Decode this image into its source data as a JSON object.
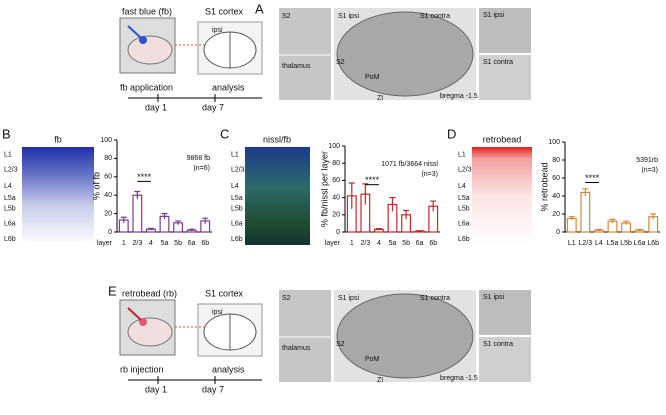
{
  "panel_a": {
    "letter": "A",
    "tracer": "fast blue (fb)",
    "target": "S1 cortex",
    "side": "ipsi",
    "step1": "fb application",
    "step2": "analysis",
    "day1": "day 1",
    "day2": "day 7",
    "image_labels": [
      "S2",
      "S1 ipsi",
      "S1 contra",
      "S2",
      "PoM",
      "thalamus",
      "ZI",
      "bregma -1.5",
      "S1 ipsi",
      "S1 contra"
    ]
  },
  "panel_e": {
    "letter": "E",
    "tracer": "retrobead (rb)",
    "target": "S1 cortex",
    "side": "ipsi",
    "step1": "rb injection",
    "step2": "analysis",
    "day1": "day 1",
    "day2": "day 7",
    "image_labels": [
      "S2",
      "S1 ipsi",
      "S1 contra",
      "S2",
      "PoM",
      "thalamus",
      "ZI",
      "bregma -1.5",
      "S1 ipsi",
      "S1 contra"
    ]
  },
  "panel_b": {
    "letter": "B",
    "image_title": "fb",
    "layers": [
      "L1",
      "L2/3",
      "L4",
      "L5a",
      "L5b",
      "L6a",
      "L6b"
    ]
  },
  "panel_c": {
    "letter": "C",
    "image_title": "nissl/fb",
    "layers": [
      "L1",
      "L2/3",
      "L4",
      "L5a",
      "L5b",
      "L6a",
      "L6b"
    ]
  },
  "panel_d": {
    "letter": "D",
    "image_title": "retrobead",
    "layers": [
      "L1",
      "L2/3",
      "L4",
      "L5a",
      "L5b",
      "L6a",
      "L6b"
    ]
  },
  "chart_data": [
    {
      "type": "bar",
      "ylabel": "% of fb",
      "xlabel": "layer",
      "categories": [
        "1",
        "2/3",
        "4",
        "5a",
        "5b",
        "6a",
        "6b"
      ],
      "values": [
        13,
        40,
        3,
        17,
        10,
        2,
        12
      ],
      "errors": [
        3,
        4,
        1,
        3,
        2,
        1,
        3
      ],
      "color": "#7a3b8f",
      "ylim": [
        0,
        100
      ],
      "yticks": [
        0,
        20,
        40,
        60,
        80,
        100
      ],
      "annotations": [
        "9868 fb",
        "(n=6)"
      ],
      "significance": "****"
    },
    {
      "type": "bar",
      "ylabel": "% fb/nissl per layer",
      "xlabel": "layer",
      "categories": [
        "1",
        "2/3",
        "4",
        "5a",
        "5b",
        "6a",
        "6b"
      ],
      "values": [
        42,
        44,
        3,
        32,
        20,
        1,
        30
      ],
      "errors": [
        15,
        12,
        1,
        8,
        5,
        0.5,
        6
      ],
      "color": "#c0282d",
      "ylim": [
        0,
        100
      ],
      "yticks": [
        0,
        20,
        40,
        60,
        80,
        100
      ],
      "annotations": [
        "1071 fb/3664 nissl",
        "(n=3)"
      ],
      "significance": "****"
    },
    {
      "type": "bar",
      "ylabel": "% retrobead",
      "categories": [
        "L1",
        "L2/3",
        "L4",
        "L5a",
        "L5b",
        "L6a",
        "L6b"
      ],
      "values": [
        15,
        44,
        2,
        12,
        10,
        2,
        17
      ],
      "errors": [
        2,
        4,
        1,
        2,
        2,
        1,
        3
      ],
      "color": "#d08a3a",
      "ylim": [
        0,
        100
      ],
      "yticks": [
        0,
        20,
        40,
        60,
        80,
        100
      ],
      "annotations": [
        "5391rb",
        "(n=3)"
      ],
      "significance": "****"
    }
  ]
}
